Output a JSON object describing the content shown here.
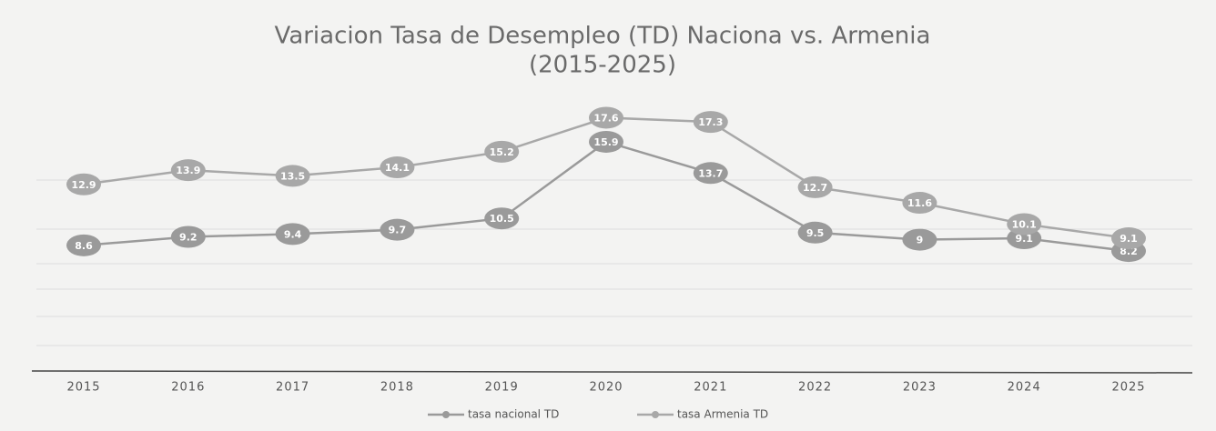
{
  "chart_data": {
    "type": "line",
    "title": "Variacion  Tasa de Desempleo (TD) Naciona vs. Armenia",
    "subtitle": "(2015-2025)",
    "categories": [
      "2015",
      "2016",
      "2017",
      "2018",
      "2019",
      "2020",
      "2021",
      "2022",
      "2023",
      "2024",
      "2025"
    ],
    "series": [
      {
        "name": "tasa nacional TD",
        "color": "#9a9a9a",
        "values": [
          8.6,
          9.2,
          9.4,
          9.7,
          10.5,
          15.9,
          13.7,
          9.5,
          9,
          9.1,
          8.2
        ]
      },
      {
        "name": "tasa Armenia TD",
        "color": "#a8a8a8",
        "values": [
          12.9,
          13.9,
          13.5,
          14.1,
          15.2,
          17.6,
          17.3,
          12.7,
          11.6,
          10.1,
          9.1
        ]
      }
    ],
    "ylim": [
      0,
      20
    ]
  }
}
